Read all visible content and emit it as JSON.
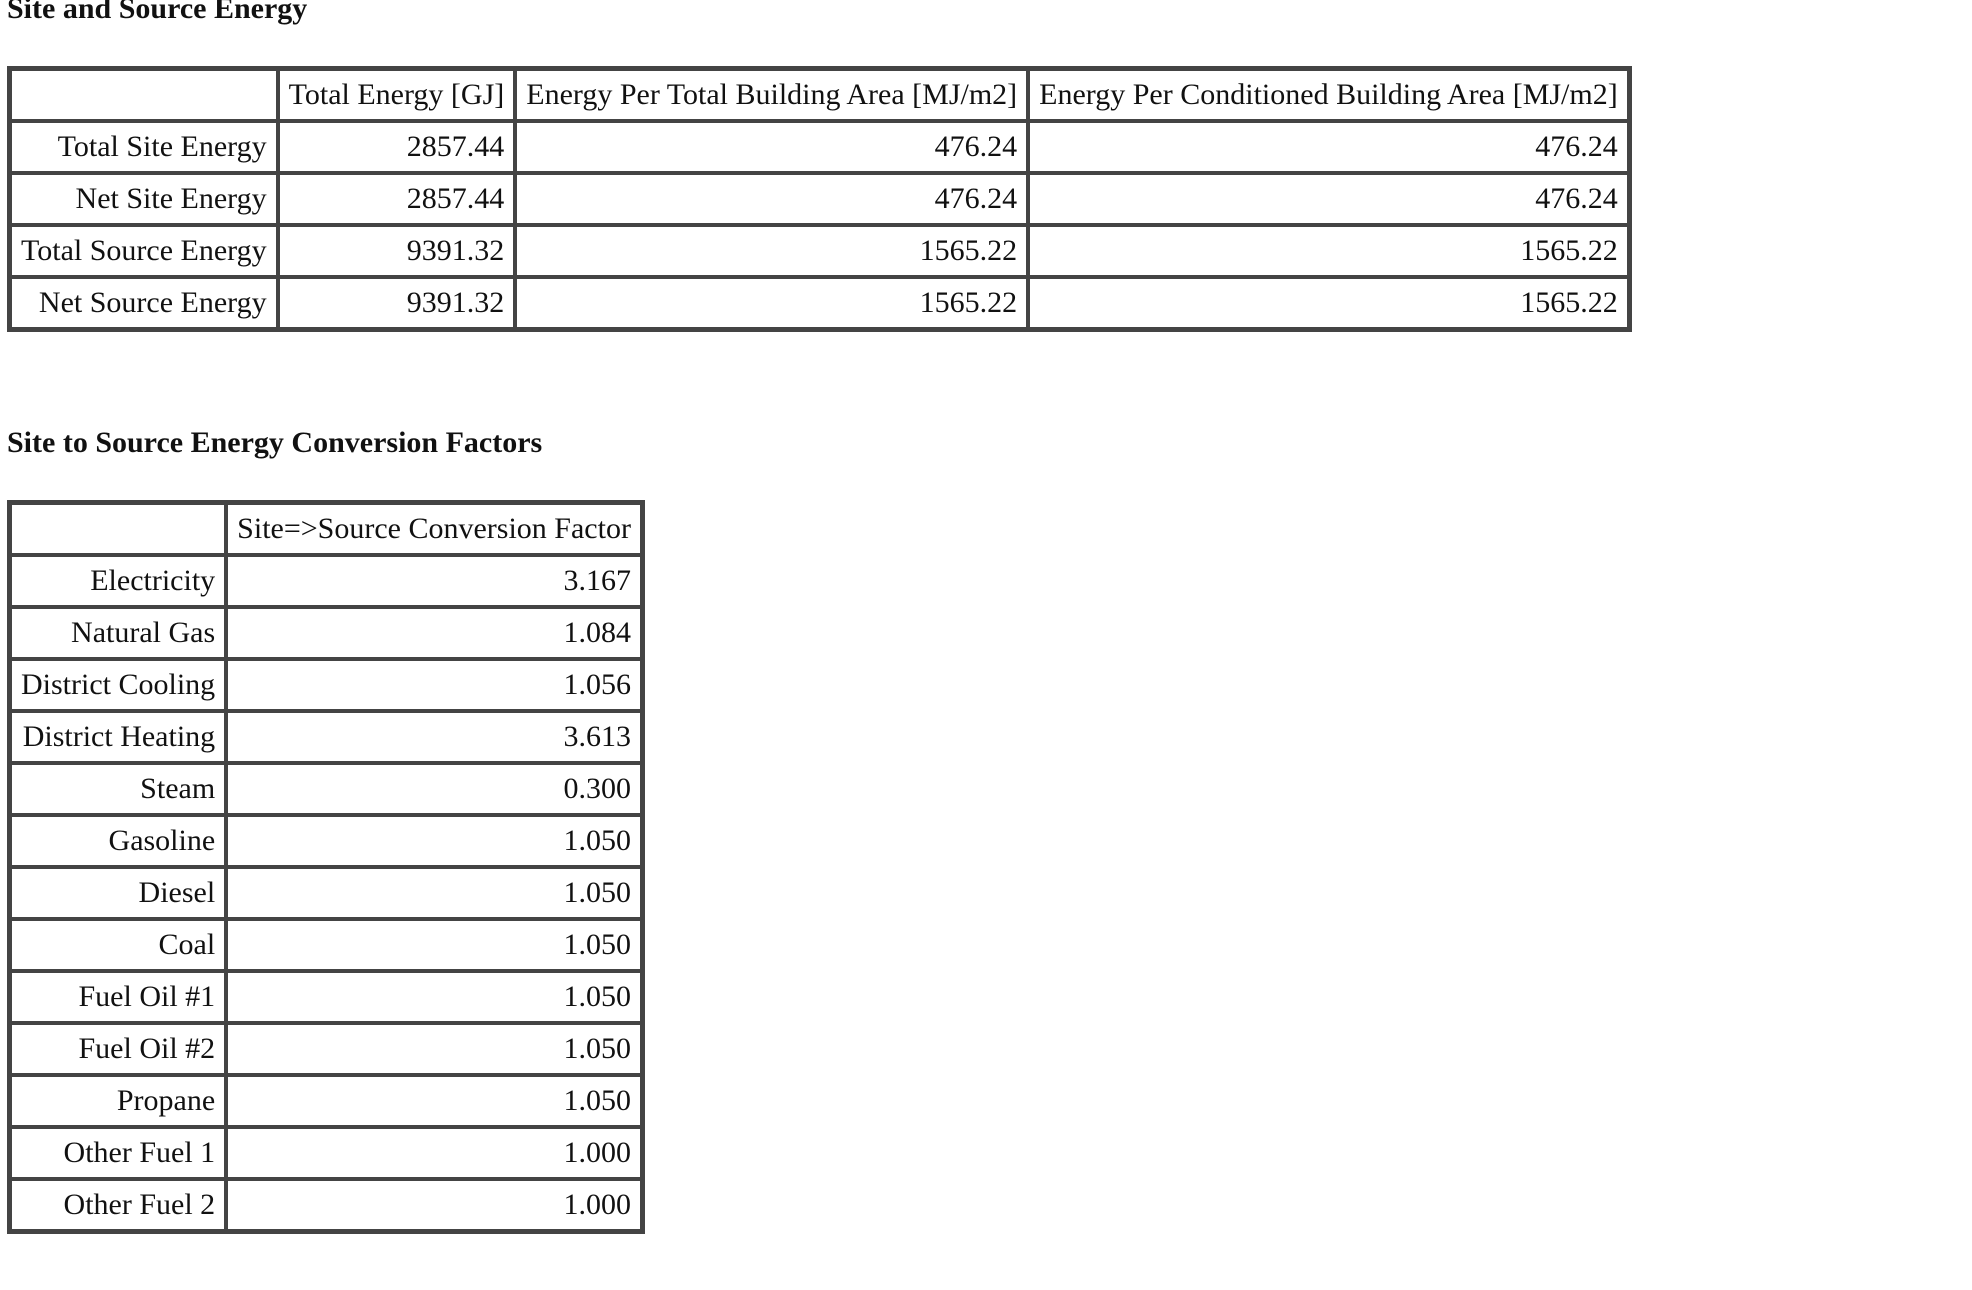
{
  "site_source": {
    "title": "Site and Source Energy",
    "headers": [
      "",
      "Total Energy [GJ]",
      "Energy Per Total Building Area [MJ/m2]",
      "Energy Per Conditioned Building Area [MJ/m2]"
    ],
    "rows": [
      {
        "label": "Total Site Energy",
        "values": [
          "2857.44",
          "476.24",
          "476.24"
        ]
      },
      {
        "label": "Net Site Energy",
        "values": [
          "2857.44",
          "476.24",
          "476.24"
        ]
      },
      {
        "label": "Total Source Energy",
        "values": [
          "9391.32",
          "1565.22",
          "1565.22"
        ]
      },
      {
        "label": "Net Source Energy",
        "values": [
          "9391.32",
          "1565.22",
          "1565.22"
        ]
      }
    ]
  },
  "conversion": {
    "title": "Site to Source Energy Conversion Factors",
    "headers": [
      "",
      "Site=>Source Conversion Factor"
    ],
    "rows": [
      {
        "label": "Electricity",
        "value": "3.167"
      },
      {
        "label": "Natural Gas",
        "value": "1.084"
      },
      {
        "label": "District Cooling",
        "value": "1.056"
      },
      {
        "label": "District Heating",
        "value": "3.613"
      },
      {
        "label": "Steam",
        "value": "0.300"
      },
      {
        "label": "Gasoline",
        "value": "1.050"
      },
      {
        "label": "Diesel",
        "value": "1.050"
      },
      {
        "label": "Coal",
        "value": "1.050"
      },
      {
        "label": "Fuel Oil #1",
        "value": "1.050"
      },
      {
        "label": "Fuel Oil #2",
        "value": "1.050"
      },
      {
        "label": "Propane",
        "value": "1.050"
      },
      {
        "label": "Other Fuel 1",
        "value": "1.000"
      },
      {
        "label": "Other Fuel 2",
        "value": "1.000"
      }
    ]
  }
}
